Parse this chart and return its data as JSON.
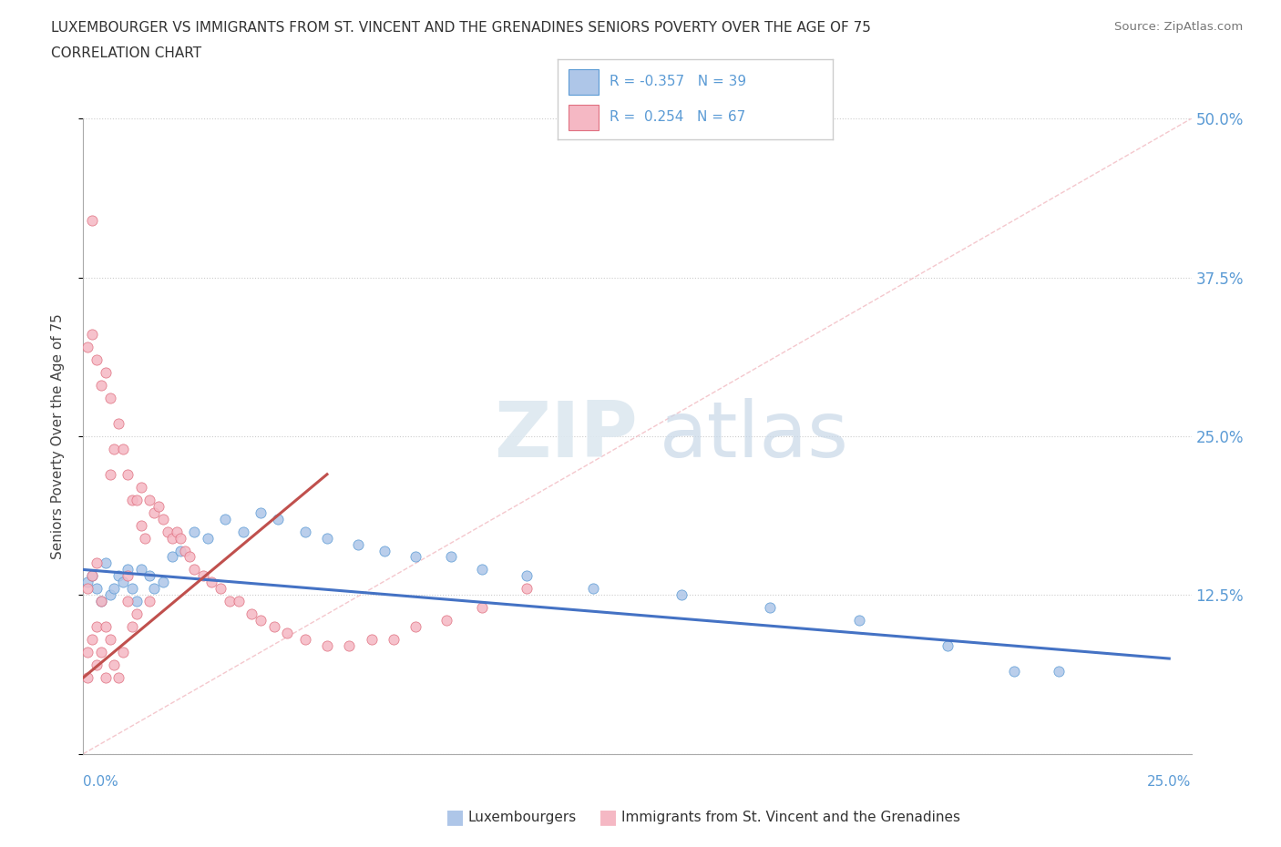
{
  "title_line1": "LUXEMBOURGER VS IMMIGRANTS FROM ST. VINCENT AND THE GRENADINES SENIORS POVERTY OVER THE AGE OF 75",
  "title_line2": "CORRELATION CHART",
  "source": "Source: ZipAtlas.com",
  "ylabel": "Seniors Poverty Over the Age of 75",
  "xlim": [
    0.0,
    0.25
  ],
  "ylim": [
    0.0,
    0.5
  ],
  "yticks": [
    0.0,
    0.125,
    0.25,
    0.375,
    0.5
  ],
  "ytick_labels": [
    "",
    "12.5%",
    "25.0%",
    "37.5%",
    "50.0%"
  ],
  "color_blue_fill": "#aec6e8",
  "color_blue_edge": "#5b9bd5",
  "color_pink_fill": "#f5b8c4",
  "color_pink_edge": "#e07080",
  "color_blue_line": "#4472c4",
  "color_pink_line": "#c0504d",
  "legend_R1": "-0.357",
  "legend_N1": "39",
  "legend_R2": "0.254",
  "legend_N2": "67",
  "blue_x": [
    0.001,
    0.002,
    0.003,
    0.004,
    0.005,
    0.006,
    0.007,
    0.008,
    0.009,
    0.01,
    0.011,
    0.012,
    0.013,
    0.015,
    0.016,
    0.018,
    0.02,
    0.022,
    0.025,
    0.028,
    0.032,
    0.036,
    0.04,
    0.044,
    0.05,
    0.055,
    0.062,
    0.068,
    0.075,
    0.083,
    0.09,
    0.1,
    0.115,
    0.135,
    0.155,
    0.175,
    0.195,
    0.21,
    0.22
  ],
  "blue_y": [
    0.135,
    0.14,
    0.13,
    0.12,
    0.15,
    0.125,
    0.13,
    0.14,
    0.135,
    0.145,
    0.13,
    0.12,
    0.145,
    0.14,
    0.13,
    0.135,
    0.155,
    0.16,
    0.175,
    0.17,
    0.185,
    0.175,
    0.19,
    0.185,
    0.175,
    0.17,
    0.165,
    0.16,
    0.155,
    0.155,
    0.145,
    0.14,
    0.13,
    0.125,
    0.115,
    0.105,
    0.085,
    0.065,
    0.065
  ],
  "pink_x": [
    0.001,
    0.001,
    0.001,
    0.002,
    0.002,
    0.003,
    0.003,
    0.003,
    0.004,
    0.004,
    0.004,
    0.005,
    0.005,
    0.005,
    0.006,
    0.006,
    0.006,
    0.007,
    0.007,
    0.008,
    0.008,
    0.009,
    0.009,
    0.01,
    0.01,
    0.01,
    0.011,
    0.011,
    0.012,
    0.012,
    0.013,
    0.013,
    0.014,
    0.015,
    0.015,
    0.016,
    0.017,
    0.018,
    0.019,
    0.02,
    0.021,
    0.022,
    0.023,
    0.024,
    0.025,
    0.027,
    0.029,
    0.031,
    0.033,
    0.035,
    0.038,
    0.04,
    0.043,
    0.046,
    0.05,
    0.055,
    0.06,
    0.065,
    0.07,
    0.075,
    0.082,
    0.09,
    0.1,
    0.001,
    0.002,
    0.003,
    0.002
  ],
  "pink_y": [
    0.08,
    0.13,
    0.06,
    0.09,
    0.14,
    0.1,
    0.15,
    0.07,
    0.08,
    0.12,
    0.29,
    0.06,
    0.3,
    0.1,
    0.09,
    0.28,
    0.22,
    0.07,
    0.24,
    0.06,
    0.26,
    0.08,
    0.24,
    0.12,
    0.14,
    0.22,
    0.1,
    0.2,
    0.11,
    0.2,
    0.18,
    0.21,
    0.17,
    0.12,
    0.2,
    0.19,
    0.195,
    0.185,
    0.175,
    0.17,
    0.175,
    0.17,
    0.16,
    0.155,
    0.145,
    0.14,
    0.135,
    0.13,
    0.12,
    0.12,
    0.11,
    0.105,
    0.1,
    0.095,
    0.09,
    0.085,
    0.085,
    0.09,
    0.09,
    0.1,
    0.105,
    0.115,
    0.13,
    0.32,
    0.33,
    0.31,
    0.42
  ],
  "blue_line_x": [
    0.0,
    0.245
  ],
  "blue_line_y": [
    0.145,
    0.075
  ],
  "pink_line_x": [
    0.0,
    0.055
  ],
  "pink_line_y": [
    0.06,
    0.22
  ],
  "diag_line_x": [
    0.0,
    0.25
  ],
  "diag_line_y": [
    0.0,
    0.5
  ]
}
